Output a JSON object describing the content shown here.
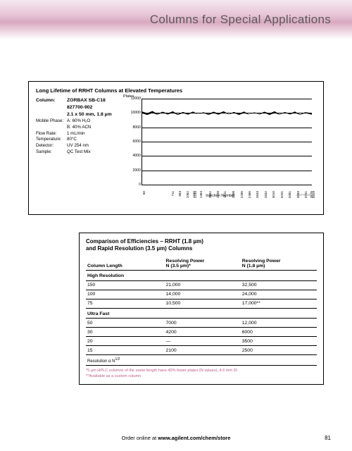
{
  "page": {
    "title": "Columns for Special Applications",
    "footer_prefix": "Order online at ",
    "footer_url": "www.agilent.com/chem/store",
    "number": "81"
  },
  "chart": {
    "title": "Long Lifetime of RRHT Columns at Elevated Temperatures",
    "params": {
      "column_label": "Column:",
      "column_line1": "ZORBAX SB-C18",
      "column_line2": "827700-902",
      "column_line3": "2.1 x 50 mm, 1.8 µm",
      "rows": [
        {
          "lbl": "Mobile Phase:",
          "val": "A: 60% H₂O"
        },
        {
          "lbl": "",
          "val": "B: 40% ACN"
        },
        {
          "lbl": "Flow Rate:",
          "val": "1 mL/min"
        },
        {
          "lbl": "Temperature:",
          "val": "80°C"
        },
        {
          "lbl": "Detector:",
          "val": "UV 254 nm"
        },
        {
          "lbl": "Sample:",
          "val": "QC Test Mix"
        }
      ]
    },
    "ylabel": "Plates",
    "xlabel": "Injection Number",
    "ylim": [
      0,
      12000
    ],
    "yticks": [
      0,
      2000,
      4000,
      6000,
      8000,
      10000,
      12000
    ],
    "xlim": [
      60,
      3929
    ],
    "xticks": [
      60,
      711,
      883,
      1062,
      1192,
      1234,
      1364,
      1562,
      1748,
      1911,
      2098,
      2285,
      2465,
      2643,
      2832,
      3010,
      3201,
      3381,
      3569,
      3751,
      3876,
      3929
    ],
    "data_band": {
      "center": 10000,
      "thickness": 700
    },
    "plot_id": "ILGP0305",
    "grid_color": "#000000",
    "band_color": "#000000",
    "background_color": "#ffffff"
  },
  "table": {
    "title_line1": "Comparison of Efficiencies – RRHT (1.8 µm)",
    "title_line2": "and Rapid Resolution (3.5 µm) Columns",
    "headers": {
      "col1": "Column Length",
      "col2a": "Resolving Power",
      "col2b": "N (3.5 µm)*",
      "col3a": "Resolving Power",
      "col3b": "N (1.8 µm)"
    },
    "sections": [
      {
        "name": "High Resolution",
        "rows": [
          {
            "len": "150",
            "n35": "21,000",
            "n18": "32,500"
          },
          {
            "len": "100",
            "n35": "14,000",
            "n18": "24,000"
          },
          {
            "len": "75",
            "n35": "10,500",
            "n18": "17,000**"
          }
        ]
      },
      {
        "name": "Ultra Fast",
        "rows": [
          {
            "len": "50",
            "n35": "7000",
            "n18": "12,000"
          },
          {
            "len": "30",
            "n35": "4200",
            "n18": "6000"
          },
          {
            "len": "20",
            "n35": "—",
            "n18": "3500"
          },
          {
            "len": "15",
            "n35": "2100",
            "n18": "2500"
          }
        ]
      }
    ],
    "resolution_note": "Resolution α N",
    "resolution_exp": "1/2",
    "footnote1": "*5 µm HPLC columns of the same length have 40% fewer plates (N values), 4.6 mm ID",
    "footnote2": "**Available as a custom column"
  }
}
